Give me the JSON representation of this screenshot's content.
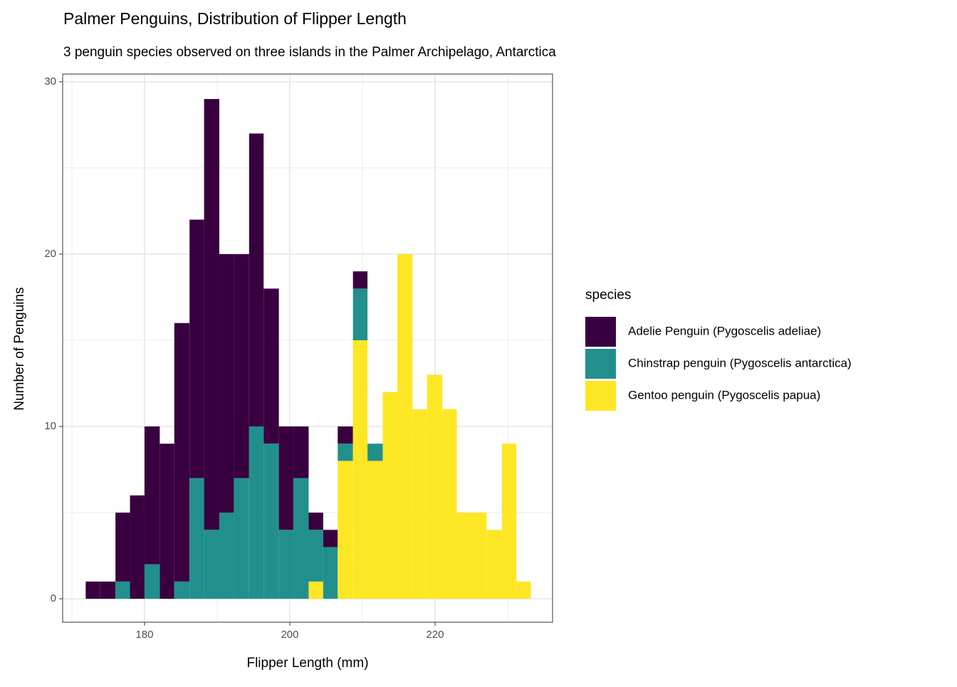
{
  "chart_data": {
    "type": "histogram",
    "title": "Palmer Penguins, Distribution of Flipper Length",
    "subtitle": "3 penguin species observed on three islands in the Palmer Archipelago, Antarctica",
    "x_label": "Flipper Length (mm)",
    "y_label": "Number of Penguins",
    "legend_title": "species",
    "legend_position": "right",
    "stacked": true,
    "grid": true,
    "bins": [
      171.9,
      173.9,
      176.0,
      178.0,
      180.0,
      182.1,
      184.1,
      186.2,
      188.2,
      190.3,
      192.3,
      194.4,
      196.4,
      198.5,
      200.5,
      202.6,
      204.6,
      206.6,
      208.7,
      210.7,
      212.8,
      214.8,
      216.9,
      218.9,
      221.0,
      223.0,
      225.1,
      227.1,
      229.2,
      231.2,
      233.2
    ],
    "series": [
      {
        "name": "Adelie Penguin (Pygoscelis adeliae)",
        "color": "#39003f",
        "values": [
          1,
          1,
          4,
          6,
          8,
          9,
          15,
          15,
          25,
          15,
          13,
          17,
          9,
          6,
          3,
          1,
          1,
          1,
          1,
          0,
          0,
          0,
          0,
          0,
          0,
          0,
          0,
          0,
          0,
          0
        ]
      },
      {
        "name": "Chinstrap penguin (Pygoscelis antarctica)",
        "color": "#21908c",
        "values": [
          0,
          0,
          1,
          0,
          2,
          0,
          1,
          7,
          4,
          5,
          7,
          10,
          9,
          4,
          7,
          3,
          3,
          1,
          3,
          1,
          0,
          0,
          0,
          0,
          0,
          0,
          0,
          0,
          0,
          0
        ]
      },
      {
        "name": "Gentoo penguin (Pygoscelis papua)",
        "color": "#fde725",
        "values": [
          0,
          0,
          0,
          0,
          0,
          0,
          0,
          0,
          0,
          0,
          0,
          0,
          0,
          0,
          0,
          1,
          0,
          8,
          15,
          8,
          12,
          20,
          11,
          13,
          11,
          5,
          5,
          4,
          9,
          1
        ]
      }
    ],
    "xlim": [
      168.73,
      236.18
    ],
    "ylim": [
      -1.36,
      30.45
    ],
    "xticks": [
      180,
      200,
      220
    ],
    "yticks": [
      0,
      10,
      20,
      30
    ]
  }
}
